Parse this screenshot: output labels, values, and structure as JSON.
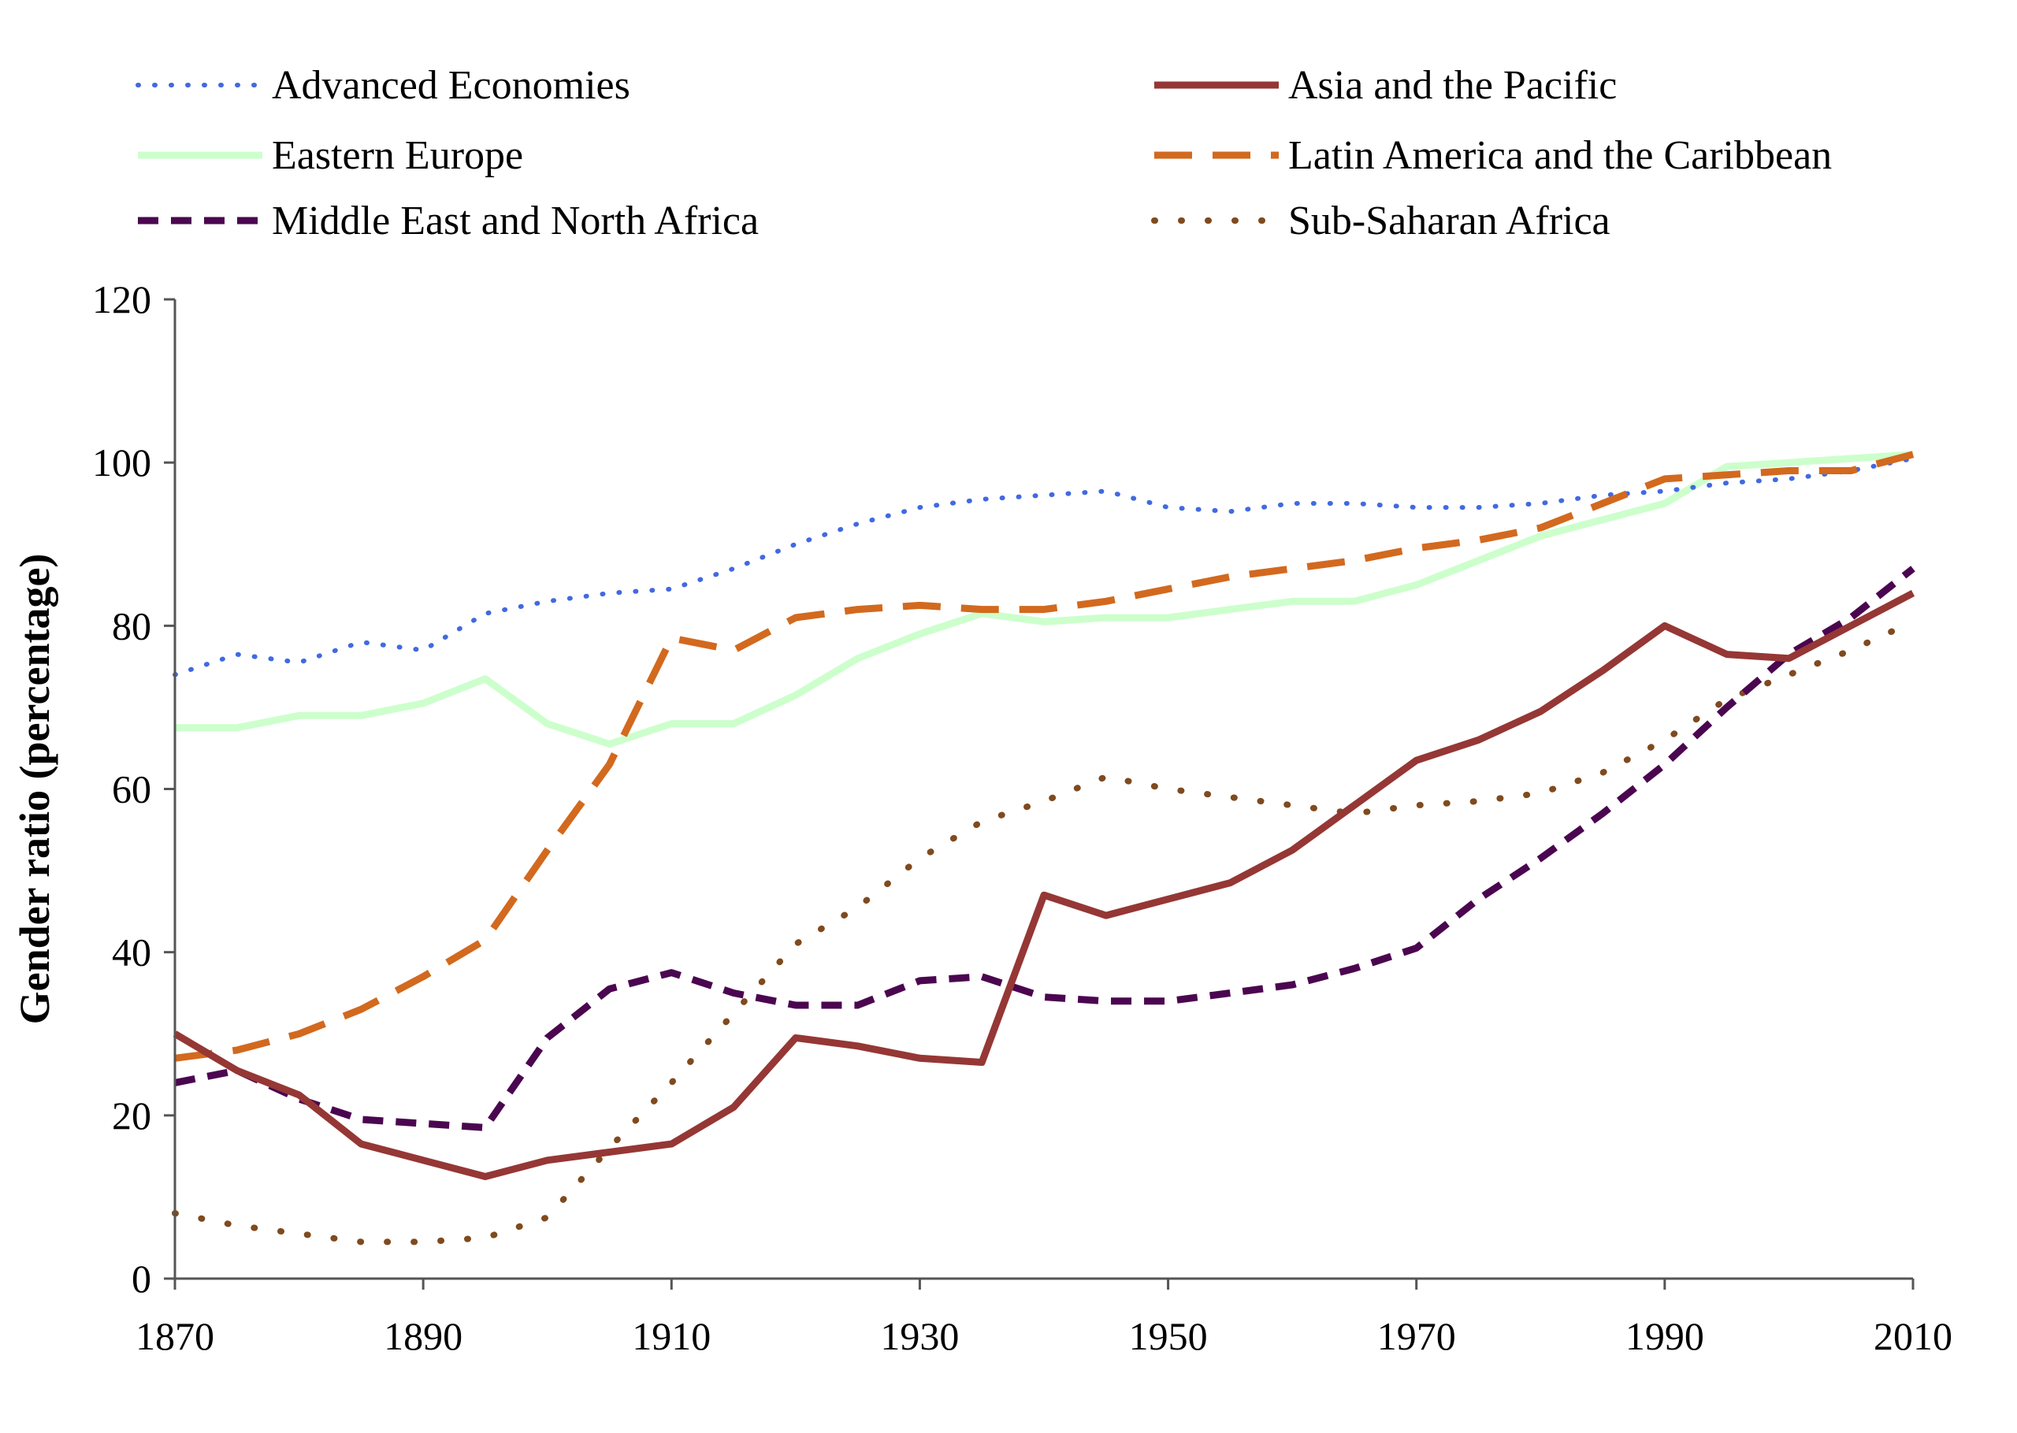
{
  "chart_data": {
    "type": "line",
    "xlabel": "",
    "ylabel": "Gender ratio (percentage)",
    "xlim": [
      1870,
      2010
    ],
    "ylim": [
      0,
      120
    ],
    "x_ticks": [
      "1870",
      "1890",
      "1910",
      "1930",
      "1950",
      "1970",
      "1990",
      "2010"
    ],
    "y_ticks": [
      "0",
      "20",
      "40",
      "60",
      "80",
      "100",
      "120"
    ],
    "grid": false,
    "legend_position": "top",
    "x": [
      1870,
      1875,
      1880,
      1885,
      1890,
      1895,
      1900,
      1905,
      1910,
      1915,
      1920,
      1925,
      1930,
      1935,
      1940,
      1945,
      1950,
      1955,
      1960,
      1965,
      1970,
      1975,
      1980,
      1985,
      1990,
      1995,
      2000,
      2005,
      2010
    ],
    "series": [
      {
        "name": "Advanced Economies",
        "color": "#4169E1",
        "style": "dotted-fine",
        "values": [
          74,
          76.5,
          75.5,
          78,
          77,
          81.5,
          83,
          84,
          84.5,
          87,
          90,
          92.5,
          94.5,
          95.5,
          96,
          96.5,
          94.5,
          94,
          95,
          95,
          94.5,
          94.5,
          95,
          96,
          96.5,
          97.5,
          98,
          99,
          100.5
        ]
      },
      {
        "name": "Asia and the Pacific",
        "color": "#953735",
        "style": "solid",
        "values": [
          30,
          25.5,
          22.5,
          16.5,
          14.5,
          12.5,
          14.5,
          15.5,
          16.5,
          21,
          29.5,
          28.5,
          27,
          26.5,
          47,
          44.5,
          46.5,
          48.5,
          52.5,
          58,
          63.5,
          66,
          69.5,
          74.5,
          80,
          76.5,
          76,
          80,
          84
        ]
      },
      {
        "name": "Eastern Europe",
        "color": "#CCFFCC",
        "style": "solid",
        "values": [
          67.5,
          67.5,
          69,
          69,
          70.5,
          73.5,
          68,
          65.5,
          68,
          68,
          71.5,
          76,
          79,
          81.5,
          80.5,
          81,
          81,
          82,
          83,
          83,
          85,
          88,
          91,
          93,
          95,
          99.5,
          100,
          100.5,
          101
        ]
      },
      {
        "name": "Latin America and the Caribbean",
        "color": "#D2691E",
        "style": "dashed-long",
        "values": [
          27,
          28,
          30,
          33,
          37,
          41.5,
          52.5,
          63,
          78.5,
          77,
          81,
          82,
          82.5,
          82,
          82,
          83,
          84.5,
          86,
          87,
          88,
          89.5,
          90.5,
          92,
          95,
          98,
          98.5,
          99,
          99,
          101
        ]
      },
      {
        "name": "Middle East and North Africa",
        "color": "#4B0650",
        "style": "dashed-short",
        "values": [
          24,
          25.5,
          22,
          19.5,
          19,
          18.5,
          29.5,
          35.5,
          37.5,
          35,
          33.5,
          33.5,
          36.5,
          37,
          34.5,
          34,
          34,
          35,
          36,
          38,
          40.5,
          46.5,
          51.5,
          57,
          63,
          70,
          76.5,
          81,
          87
        ]
      },
      {
        "name": "Sub-Saharan Africa",
        "color": "#7F4A1E",
        "style": "dotted-sparse",
        "values": [
          8,
          6.5,
          5.5,
          4.5,
          4.5,
          5,
          7.5,
          16,
          24,
          32.5,
          41,
          45.5,
          51.5,
          56,
          58.5,
          61.5,
          60,
          59,
          58,
          57,
          58,
          58.5,
          59.5,
          62,
          66,
          71,
          74,
          77,
          80.5
        ]
      }
    ]
  }
}
